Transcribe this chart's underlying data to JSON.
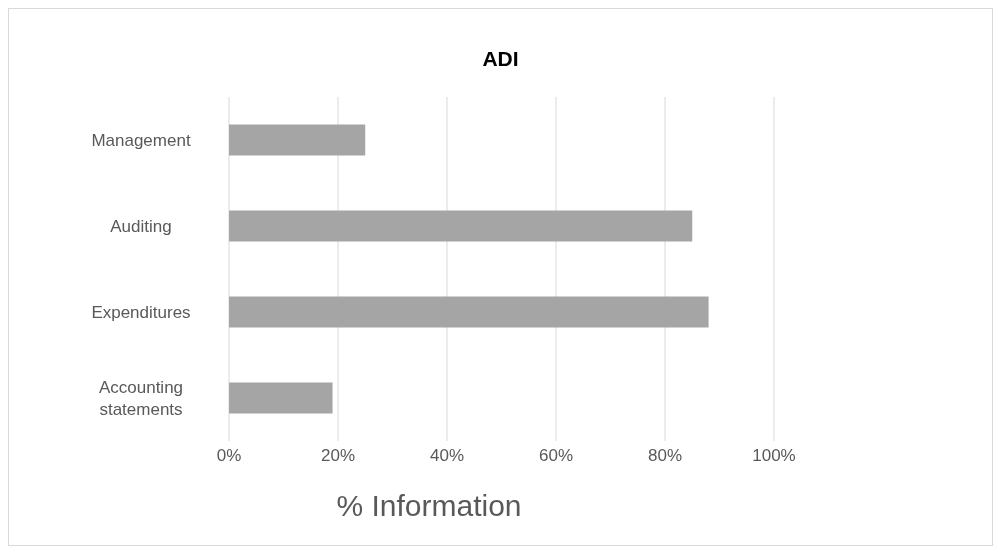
{
  "chart_data": {
    "type": "bar",
    "orientation": "horizontal",
    "title": "ADI",
    "xlabel": "% Information",
    "categories": [
      "Management",
      "Auditing",
      "Expenditures",
      "Accounting statements"
    ],
    "values": [
      25,
      85,
      88,
      19
    ],
    "color": "#a5a5a5",
    "xlim": [
      0,
      100
    ],
    "xticks": [
      {
        "value": 0,
        "label": "0%"
      },
      {
        "value": 20,
        "label": "20%"
      },
      {
        "value": 40,
        "label": "40%"
      },
      {
        "value": 60,
        "label": "60%"
      },
      {
        "value": 80,
        "label": "80%"
      },
      {
        "value": 100,
        "label": "100%"
      }
    ],
    "grid": "x"
  }
}
